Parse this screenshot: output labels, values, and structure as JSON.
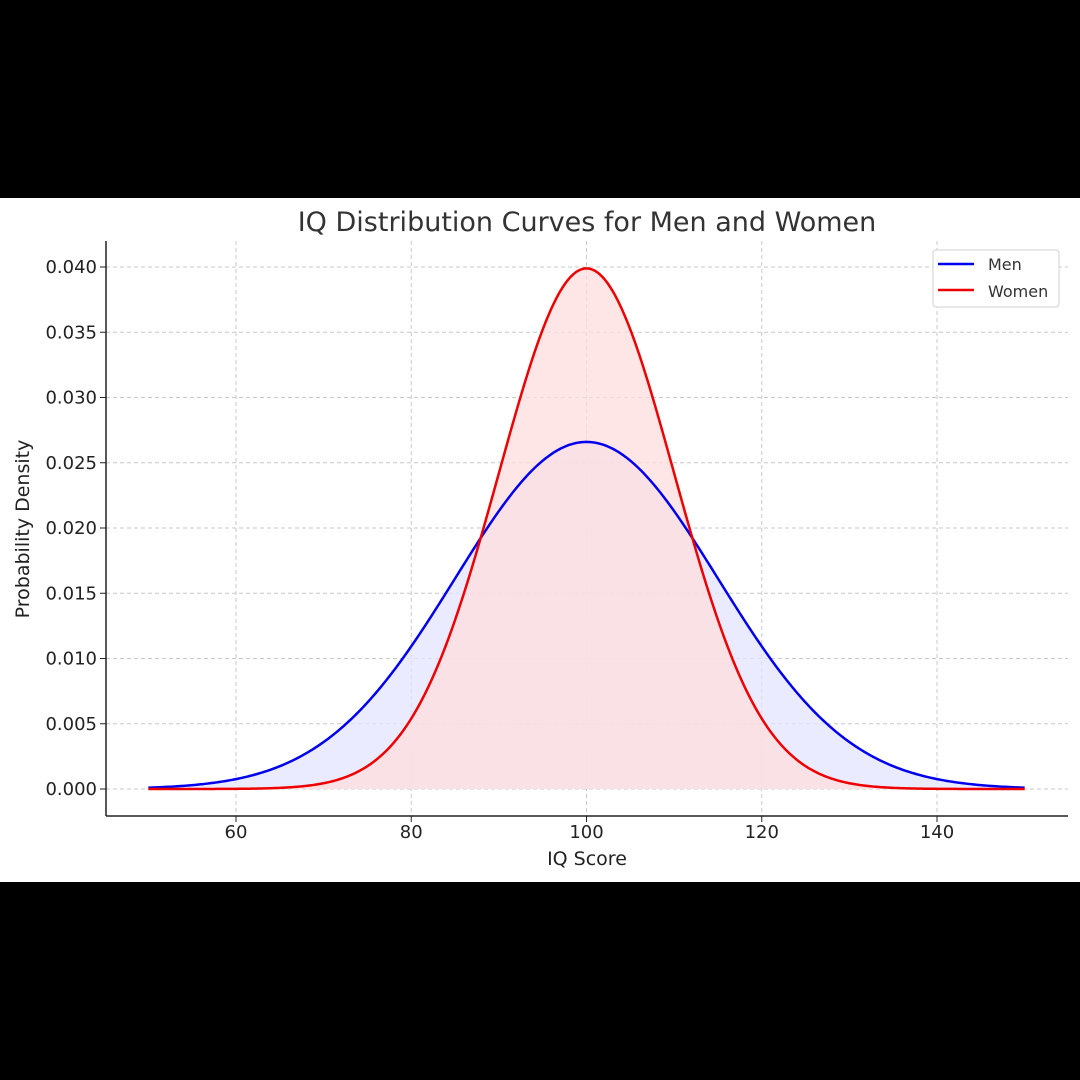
{
  "chart_data": {
    "type": "area",
    "title": "IQ Distribution Curves for Men and Women",
    "xlabel": "IQ Score",
    "ylabel": "Probability Density",
    "xlim": [
      45,
      155
    ],
    "ylim": [
      -0.002,
      0.042
    ],
    "x_range": [
      50,
      150
    ],
    "xticks": [
      60,
      80,
      100,
      120,
      140
    ],
    "yticks": [
      0.0,
      0.005,
      0.01,
      0.015,
      0.02,
      0.025,
      0.03,
      0.035,
      0.04
    ],
    "ytick_labels": [
      "0.000",
      "0.005",
      "0.010",
      "0.015",
      "0.020",
      "0.025",
      "0.030",
      "0.035",
      "0.040"
    ],
    "grid": true,
    "legend_position": "top-right",
    "series": [
      {
        "name": "Men",
        "distribution": "normal",
        "mean": 100,
        "sd": 15,
        "peak": 0.0266,
        "color": "#0000ee",
        "fill": "#e4e4ff"
      },
      {
        "name": "Women",
        "distribution": "normal",
        "mean": 100,
        "sd": 10,
        "peak": 0.0399,
        "color": "#ee0000",
        "fill": "#ffdddd"
      }
    ]
  }
}
